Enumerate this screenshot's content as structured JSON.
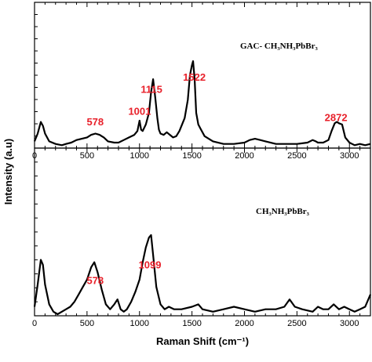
{
  "chart_data": {
    "type": "line",
    "xlabel": "Raman Shift (cm⁻¹)",
    "ylabel": "Intensity (a.u)",
    "xlim": [
      0,
      3200
    ],
    "x_ticks": [
      "0",
      "500",
      "1000",
      "1500",
      "2000",
      "2500",
      "3000"
    ],
    "x_tick_values": [
      0,
      500,
      1000,
      1500,
      2000,
      2500,
      3000
    ],
    "colors": {
      "line": "#000000",
      "peak_labels": "#e8202a"
    },
    "panels": [
      {
        "label": "GAC- CH₃NH₃PbBr₃",
        "ylim": [
          0,
          1
        ],
        "peak_labels": [
          {
            "x": 578,
            "text": "578",
            "y": 0.25
          },
          {
            "x": 1001,
            "text": "1001",
            "y": 0.37
          },
          {
            "x": 1115,
            "text": "1115",
            "y": 0.63
          },
          {
            "x": 1522,
            "text": "1522",
            "y": 0.77
          },
          {
            "x": 2872,
            "text": "2872",
            "y": 0.3
          }
        ],
        "series": [
          {
            "x": [
              0,
              30,
              60,
              80,
              100,
              140,
              200,
              260,
              300,
              350,
              400,
              450,
              500,
              540,
              580,
              620,
              660,
              700,
              760,
              800,
              850,
              900,
              950,
              980,
              1000,
              1015,
              1030,
              1060,
              1090,
              1110,
              1130,
              1150,
              1170,
              1185,
              1200,
              1230,
              1260,
              1290,
              1320,
              1350,
              1380,
              1400,
              1430,
              1460,
              1480,
              1500,
              1510,
              1525,
              1540,
              1560,
              1580,
              1620,
              1700,
              1800,
              1900,
              2000,
              2050,
              2100,
              2150,
              2200,
              2300,
              2400,
              2500,
              2600,
              2650,
              2680,
              2700,
              2750,
              2800,
              2830,
              2860,
              2880,
              2900,
              2930,
              2960,
              3000,
              3050,
              3100,
              3150,
              3200
            ],
            "y": [
              0.04,
              0.1,
              0.19,
              0.16,
              0.1,
              0.04,
              0.02,
              0.01,
              0.02,
              0.03,
              0.05,
              0.06,
              0.07,
              0.09,
              0.1,
              0.09,
              0.07,
              0.04,
              0.03,
              0.03,
              0.05,
              0.07,
              0.09,
              0.12,
              0.2,
              0.13,
              0.12,
              0.17,
              0.26,
              0.42,
              0.52,
              0.38,
              0.22,
              0.13,
              0.1,
              0.09,
              0.11,
              0.09,
              0.07,
              0.08,
              0.12,
              0.16,
              0.22,
              0.36,
              0.55,
              0.63,
              0.66,
              0.52,
              0.26,
              0.17,
              0.14,
              0.08,
              0.04,
              0.02,
              0.02,
              0.03,
              0.05,
              0.06,
              0.05,
              0.04,
              0.02,
              0.02,
              0.02,
              0.03,
              0.05,
              0.04,
              0.03,
              0.03,
              0.05,
              0.12,
              0.18,
              0.19,
              0.18,
              0.17,
              0.07,
              0.03,
              0.01,
              0.02,
              0.01,
              0.02
            ]
          }
        ]
      },
      {
        "label": "CH₃NH₃PbBr₃",
        "ylim": [
          0,
          1
        ],
        "peak_labels": [
          {
            "x": 578,
            "text": "578",
            "y": 0.38
          },
          {
            "x": 1099,
            "text": "1099",
            "y": 0.58
          }
        ],
        "series": [
          {
            "x": [
              0,
              30,
              60,
              80,
              100,
              140,
              180,
              220,
              260,
              300,
              340,
              380,
              420,
              460,
              500,
              540,
              570,
              600,
              640,
              680,
              720,
              760,
              790,
              820,
              850,
              880,
              920,
              960,
              1000,
              1030,
              1060,
              1090,
              1110,
              1130,
              1160,
              1200,
              1240,
              1280,
              1330,
              1400,
              1500,
              1560,
              1600,
              1700,
              1800,
              1900,
              2000,
              2100,
              2200,
              2300,
              2380,
              2430,
              2480,
              2550,
              2650,
              2700,
              2750,
              2800,
              2850,
              2900,
              2950,
              3000,
              3050,
              3100,
              3150,
              3200
            ],
            "y": [
              0.03,
              0.12,
              0.22,
              0.2,
              0.12,
              0.04,
              0.01,
              0.0,
              0.01,
              0.02,
              0.03,
              0.05,
              0.08,
              0.11,
              0.14,
              0.19,
              0.21,
              0.17,
              0.1,
              0.04,
              0.02,
              0.04,
              0.06,
              0.02,
              0.01,
              0.02,
              0.05,
              0.09,
              0.14,
              0.21,
              0.27,
              0.31,
              0.32,
              0.24,
              0.11,
              0.04,
              0.02,
              0.03,
              0.02,
              0.02,
              0.03,
              0.04,
              0.02,
              0.01,
              0.02,
              0.03,
              0.02,
              0.01,
              0.02,
              0.02,
              0.03,
              0.06,
              0.03,
              0.02,
              0.01,
              0.03,
              0.02,
              0.02,
              0.04,
              0.02,
              0.03,
              0.02,
              0.01,
              0.02,
              0.03,
              0.08
            ]
          }
        ]
      }
    ]
  }
}
